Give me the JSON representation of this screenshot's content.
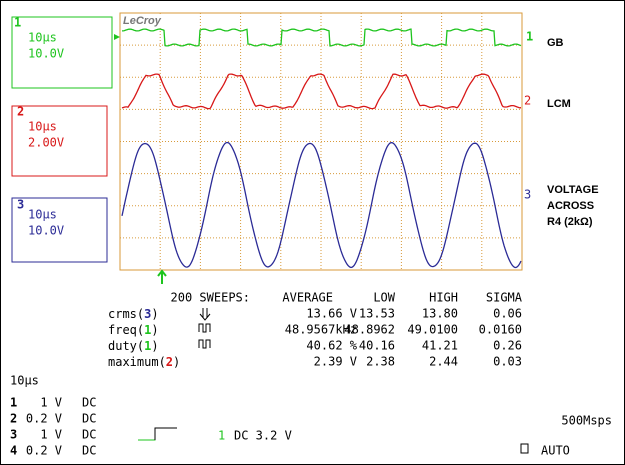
{
  "logo": "LeCroy",
  "channels": [
    {
      "number": "1",
      "timebase": "10µs",
      "scale": "10.0V",
      "trace": [
        "GB"
      ]
    },
    {
      "number": "2",
      "timebase": "10µs",
      "scale": "2.00V",
      "trace": [
        "LCM"
      ]
    },
    {
      "number": "3",
      "timebase": "10µs",
      "scale": "10.0V",
      "trace": [
        "VOLTAGE",
        "ACROSS",
        "R4 (2kΩ)"
      ]
    }
  ],
  "measurements": {
    "header": [
      "200 SWEEPS:",
      "AVERAGE",
      "LOW",
      "HIGH",
      "SIGMA"
    ],
    "rows": [
      {
        "label": [
          "crms(",
          "3",
          ")"
        ],
        "average": "13.66 V",
        "low": "13.53",
        "high": "13.80",
        "sigma": "0.06"
      },
      {
        "label": [
          "freq(",
          "1",
          ")"
        ],
        "average": "48.9567kHz",
        "low": "48.8962",
        "high": "49.0100",
        "sigma": "0.0160"
      },
      {
        "label": [
          "duty(",
          "1",
          ")"
        ],
        "average": "40.62 %",
        "low": "40.16",
        "high": "41.21",
        "sigma": "0.26"
      },
      {
        "label": [
          "maximum(",
          "2",
          ")"
        ],
        "average": "2.39 V",
        "low": "2.38",
        "high": "2.44",
        "sigma": "0.03"
      }
    ]
  },
  "timebase": "10µs",
  "settings": [
    {
      "channel": "1",
      "volts": "1 V",
      "coupling": "DC"
    },
    {
      "channel": "2",
      "volts": "0.2 V",
      "coupling": "DC"
    },
    {
      "channel": "3",
      "volts": "1 V",
      "coupling": "DC"
    },
    {
      "channel": "4",
      "volts": "0.2 V",
      "coupling": "DC"
    }
  ],
  "trigger": {
    "channel": "1",
    "setting": "DC 3.2 V"
  },
  "sample_rate": "500Msps",
  "mode": "AUTO"
}
